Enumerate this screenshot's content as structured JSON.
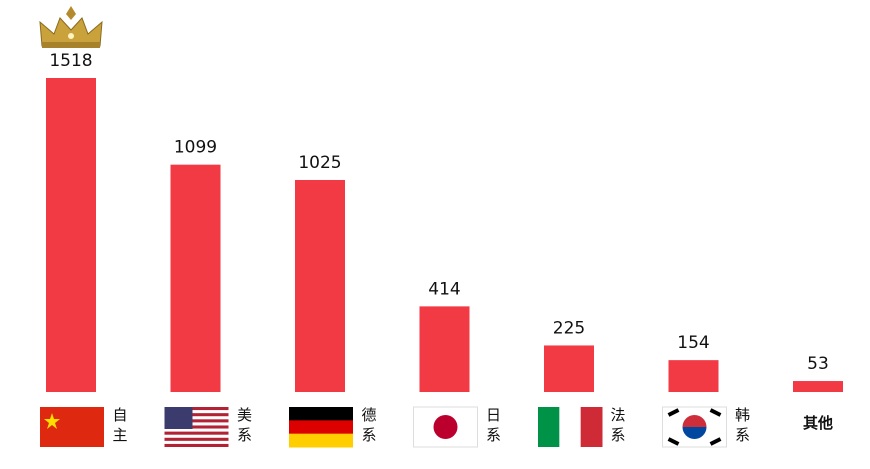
{
  "chart_data": {
    "type": "bar",
    "categories": [
      "自主",
      "美系",
      "德系",
      "日系",
      "法系",
      "韩系",
      "其他"
    ],
    "values": [
      1518,
      1099,
      1025,
      414,
      225,
      154,
      53
    ],
    "color": "#f23a45"
  }
}
